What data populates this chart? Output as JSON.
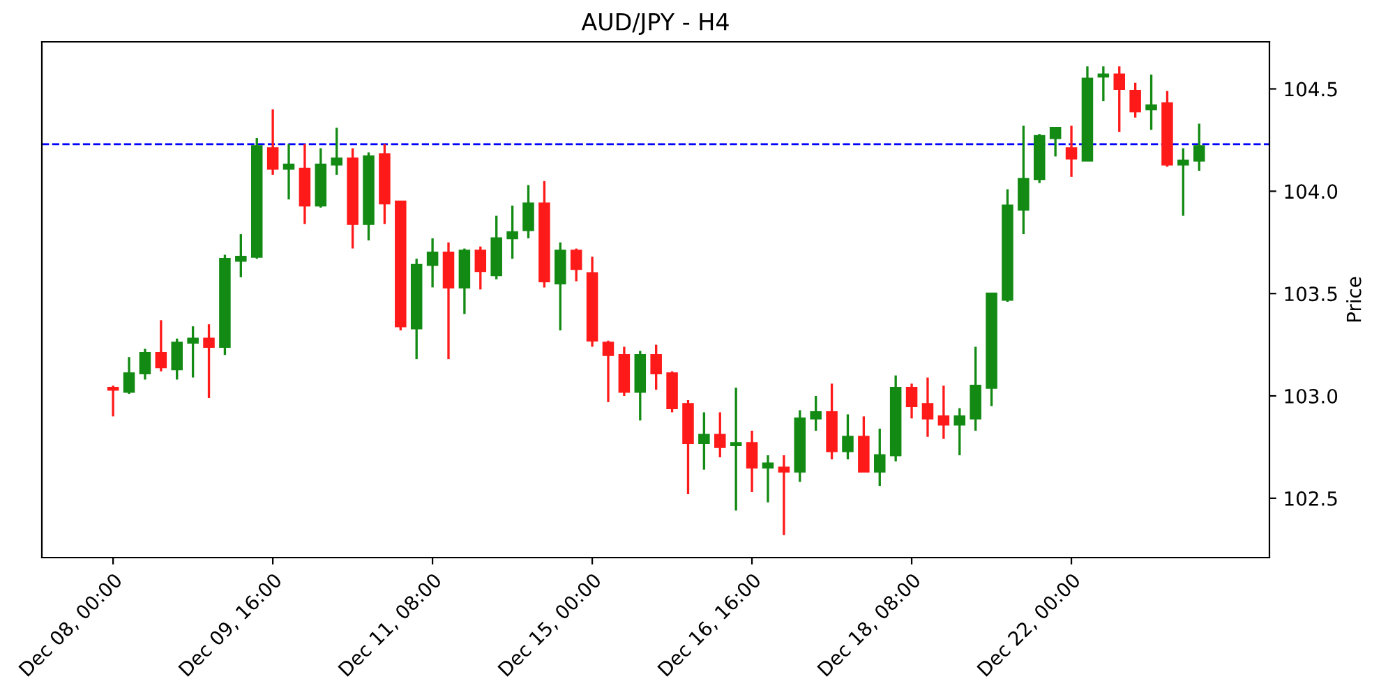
{
  "chart_data": {
    "type": "candlestick",
    "title": "AUD/JPY - H4",
    "ylabel": "Price",
    "categories": [
      "Dec 08, 00:00",
      null,
      null,
      null,
      null,
      null,
      null,
      null,
      null,
      null,
      "Dec 09, 16:00",
      null,
      null,
      null,
      null,
      null,
      null,
      null,
      null,
      null,
      "Dec 11, 08:00",
      null,
      null,
      null,
      null,
      null,
      null,
      null,
      null,
      null,
      "Dec 15, 00:00",
      null,
      null,
      null,
      null,
      null,
      null,
      null,
      null,
      null,
      "Dec 16, 16:00",
      null,
      null,
      null,
      null,
      null,
      null,
      null,
      null,
      null,
      "Dec 18, 08:00",
      null,
      null,
      null,
      null,
      null,
      null,
      null,
      null,
      null,
      "Dec 22, 00:00",
      null,
      null,
      null,
      null,
      null,
      null,
      null,
      null
    ],
    "ohlc": [
      [
        103.04,
        103.05,
        102.9,
        103.03
      ],
      [
        103.02,
        103.19,
        103.01,
        103.11
      ],
      [
        103.11,
        103.23,
        103.08,
        103.21
      ],
      [
        103.21,
        103.37,
        103.12,
        103.14
      ],
      [
        103.13,
        103.28,
        103.08,
        103.26
      ],
      [
        103.26,
        103.34,
        103.09,
        103.28
      ],
      [
        103.28,
        103.35,
        102.99,
        103.24
      ],
      [
        103.24,
        103.69,
        103.2,
        103.67
      ],
      [
        103.66,
        103.79,
        103.58,
        103.68
      ],
      [
        103.68,
        104.26,
        103.67,
        104.22
      ],
      [
        104.21,
        104.4,
        104.08,
        104.11
      ],
      [
        104.11,
        104.23,
        103.96,
        104.13
      ],
      [
        104.11,
        104.23,
        103.84,
        103.93
      ],
      [
        103.93,
        104.21,
        103.92,
        104.13
      ],
      [
        104.13,
        104.31,
        104.08,
        104.16
      ],
      [
        104.16,
        104.21,
        103.72,
        103.84
      ],
      [
        103.84,
        104.19,
        103.76,
        104.17
      ],
      [
        104.18,
        104.23,
        103.84,
        103.94
      ],
      [
        103.95,
        103.95,
        103.32,
        103.34
      ],
      [
        103.33,
        103.67,
        103.18,
        103.64
      ],
      [
        103.64,
        103.77,
        103.53,
        103.7
      ],
      [
        103.7,
        103.75,
        103.18,
        103.53
      ],
      [
        103.53,
        103.72,
        103.4,
        103.71
      ],
      [
        103.71,
        103.73,
        103.52,
        103.61
      ],
      [
        103.59,
        103.88,
        103.57,
        103.77
      ],
      [
        103.77,
        103.93,
        103.67,
        103.8
      ],
      [
        103.81,
        104.03,
        103.77,
        103.94
      ],
      [
        103.94,
        104.05,
        103.53,
        103.56
      ],
      [
        103.55,
        103.75,
        103.32,
        103.71
      ],
      [
        103.71,
        103.72,
        103.56,
        103.62
      ],
      [
        103.6,
        103.68,
        103.24,
        103.27
      ],
      [
        103.26,
        103.27,
        102.97,
        103.2
      ],
      [
        103.2,
        103.24,
        103.0,
        103.02
      ],
      [
        103.02,
        103.22,
        102.88,
        103.2
      ],
      [
        103.2,
        103.25,
        103.03,
        103.11
      ],
      [
        103.11,
        103.12,
        102.92,
        102.94
      ],
      [
        102.96,
        102.98,
        102.52,
        102.77
      ],
      [
        102.77,
        102.92,
        102.64,
        102.81
      ],
      [
        102.81,
        102.92,
        102.7,
        102.75
      ],
      [
        102.76,
        103.04,
        102.44,
        102.77
      ],
      [
        102.77,
        102.83,
        102.53,
        102.65
      ],
      [
        102.65,
        102.71,
        102.48,
        102.67
      ],
      [
        102.65,
        102.71,
        102.32,
        102.63
      ],
      [
        102.63,
        102.93,
        102.58,
        102.89
      ],
      [
        102.89,
        103.0,
        102.83,
        102.92
      ],
      [
        102.92,
        103.06,
        102.69,
        102.73
      ],
      [
        102.73,
        102.91,
        102.69,
        102.8
      ],
      [
        102.8,
        102.9,
        102.63,
        102.63
      ],
      [
        102.63,
        102.84,
        102.56,
        102.71
      ],
      [
        102.71,
        103.1,
        102.68,
        103.04
      ],
      [
        103.04,
        103.06,
        102.89,
        102.95
      ],
      [
        102.96,
        103.09,
        102.8,
        102.89
      ],
      [
        102.9,
        103.05,
        102.79,
        102.86
      ],
      [
        102.86,
        102.94,
        102.71,
        102.9
      ],
      [
        102.89,
        103.24,
        102.83,
        103.05
      ],
      [
        103.04,
        103.5,
        102.95,
        103.5
      ],
      [
        103.47,
        104.01,
        103.46,
        103.93
      ],
      [
        103.91,
        104.32,
        103.79,
        104.06
      ],
      [
        104.06,
        104.28,
        104.04,
        104.27
      ],
      [
        104.26,
        104.31,
        104.17,
        104.31
      ],
      [
        104.21,
        104.32,
        104.07,
        104.16
      ],
      [
        104.15,
        104.61,
        104.15,
        104.55
      ],
      [
        104.56,
        104.61,
        104.44,
        104.57
      ],
      [
        104.57,
        104.61,
        104.29,
        104.5
      ],
      [
        104.49,
        104.53,
        104.36,
        104.39
      ],
      [
        104.4,
        104.57,
        104.3,
        104.42
      ],
      [
        104.43,
        104.49,
        104.12,
        104.13
      ],
      [
        104.13,
        104.21,
        103.88,
        104.15
      ],
      [
        104.15,
        104.33,
        104.1,
        104.22
      ]
    ],
    "colors": [
      "#ff1a1a",
      "#138a13",
      "#138a13",
      "#ff1a1a",
      "#138a13",
      "#138a13",
      "#ff1a1a",
      "#138a13",
      "#138a13",
      "#138a13",
      "#ff1a1a",
      "#138a13",
      "#ff1a1a",
      "#138a13",
      "#138a13",
      "#ff1a1a",
      "#138a13",
      "#ff1a1a",
      "#ff1a1a",
      "#138a13",
      "#138a13",
      "#ff1a1a",
      "#138a13",
      "#ff1a1a",
      "#138a13",
      "#138a13",
      "#138a13",
      "#ff1a1a",
      "#138a13",
      "#ff1a1a",
      "#ff1a1a",
      "#ff1a1a",
      "#ff1a1a",
      "#138a13",
      "#ff1a1a",
      "#ff1a1a",
      "#ff1a1a",
      "#138a13",
      "#ff1a1a",
      "#138a13",
      "#ff1a1a",
      "#138a13",
      "#ff1a1a",
      "#138a13",
      "#138a13",
      "#ff1a1a",
      "#138a13",
      "#ff1a1a",
      "#138a13",
      "#138a13",
      "#ff1a1a",
      "#ff1a1a",
      "#ff1a1a",
      "#138a13",
      "#138a13",
      "#138a13",
      "#138a13",
      "#138a13",
      "#138a13",
      "#138a13",
      "#ff1a1a",
      "#138a13",
      "#138a13",
      "#ff1a1a",
      "#ff1a1a",
      "#138a13",
      "#ff1a1a",
      "#138a13",
      "#138a13"
    ],
    "ylim": [
      102.21,
      104.73
    ],
    "yticks": [
      {
        "value": 102.5,
        "label": "102.5"
      },
      {
        "value": 103,
        "label": "103.0"
      },
      {
        "value": 103.5,
        "label": "103.5"
      },
      {
        "value": 104,
        "label": "104.0"
      },
      {
        "value": 104.5,
        "label": "104.5"
      }
    ],
    "ref_lines": [
      {
        "axis": "y",
        "value": 104.23,
        "color": "#0000ff",
        "line_style": "dashed"
      }
    ]
  }
}
